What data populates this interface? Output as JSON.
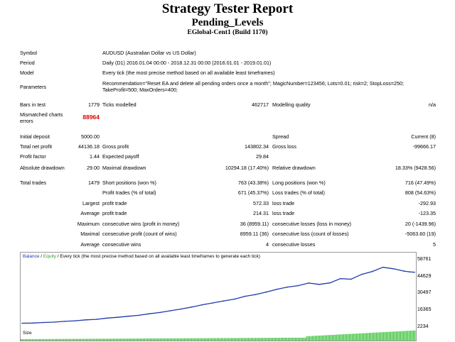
{
  "header": {
    "title": "Strategy Tester Report",
    "expert": "Pending_Levels",
    "server": "EGlobal-Cent1 (Build 1170)"
  },
  "settings": {
    "symbol_label": "Symbol",
    "symbol_value": "AUDUSD (Australian Dollar vs US Dollar)",
    "period_label": "Period",
    "period_value": "Daily (D1) 2016.01.04 00:00 - 2018.12.31 00:00 (2016.01.01 - 2019.01.01)",
    "model_label": "Model",
    "model_value": "Every tick (the most precise method based on all available least timeframes)",
    "parameters_label": "Parameters",
    "parameters_line1": "Recommendation=\"Reset EA and delete all pending orders once a month\"; MagicNumber=123456; Lots=0.01; risk=2; StopLoss=250;",
    "parameters_line2": "TakeProfit=500; MaxOrders=400;"
  },
  "quality": {
    "bars_label": "Bars in test",
    "bars_value": "1779",
    "ticks_label": "Ticks modelled",
    "ticks_value": "462717",
    "modelling_label": "Modelling quality",
    "modelling_value": "n/a",
    "mismatch_label_1": "Mismatched charts",
    "mismatch_label_2": "errors",
    "mismatch_value": "88964"
  },
  "results": {
    "initial_deposit_label": "Initial deposit",
    "initial_deposit": "5000.00",
    "spread_label": "Spread",
    "spread_value": "Current (8)",
    "net_profit_label": "Total net profit",
    "net_profit": "44136.18",
    "gross_profit_label": "Gross profit",
    "gross_profit": "143802.34",
    "gross_loss_label": "Gross loss",
    "gross_loss": "-99666.17",
    "profit_factor_label": "Profit factor",
    "profit_factor": "1.44",
    "expected_payoff_label": "Expected payoff",
    "expected_payoff": "29.84",
    "abs_dd_label": "Absolute drawdown",
    "abs_dd": "29.00",
    "max_dd_label": "Maximal drawdown",
    "max_dd": "10294.18 (17.40%)",
    "rel_dd_label": "Relative drawdown",
    "rel_dd": "18.33% (9428.56)"
  },
  "trades": {
    "total_label": "Total trades",
    "total": "1479",
    "short_label": "Short positions (won %)",
    "short": "763 (43.38%)",
    "long_label": "Long positions (won %)",
    "long": "716 (47.49%)",
    "profit_trades_label": "Profit trades (% of total)",
    "profit_trades": "671 (45.37%)",
    "loss_trades_label": "Loss trades (% of total)",
    "loss_trades": "808 (54.63%)",
    "largest_label": "Largest",
    "largest_profit_label": "profit trade",
    "largest_profit": "572.33",
    "largest_loss_label": "loss trade",
    "largest_loss": "-292.93",
    "average_label": "Average",
    "average_profit_label": "profit trade",
    "average_profit": "214.31",
    "average_loss_label": "loss trade",
    "average_loss": "-123.35",
    "maximum_label": "Maximum",
    "max_wins_label": "consecutive wins (profit in money)",
    "max_wins": "36 (8959.11)",
    "max_losses_label": "consecutive losses (loss in money)",
    "max_losses": "20 (-1439.96)",
    "maximal_label": "Maximal",
    "maximal_profit_label": "consecutive profit (count of wins)",
    "maximal_profit": "8959.11 (36)",
    "maximal_loss_label": "consecutive loss (count of losses)",
    "maximal_loss": "-5063.60 (19)",
    "avg_consec_label": "Average",
    "avg_wins_label": "consecutive wins",
    "avg_wins": "4",
    "avg_losses_label": "consecutive losses",
    "avg_losses": "5"
  },
  "chart": {
    "legend_balance": "Balance",
    "legend_sep": " / ",
    "legend_equity": "Equity",
    "legend_rest": " / Every tick (the most precise method based on all available least timeframes to generate each tick)",
    "size_label": "Size",
    "balance_color": "#1f3aa8",
    "equity_color": "#2aa02a",
    "size_color": "#22bb22"
  },
  "chart_data": {
    "type": "line",
    "title": "",
    "ylabel": "",
    "ylim": [
      2234,
      58761
    ],
    "y_ticks": [
      "58761",
      "44629",
      "30497",
      "16365",
      "2234"
    ],
    "series": [
      {
        "name": "Balance",
        "x": [
          0,
          40,
          80,
          120,
          160,
          200,
          240,
          280,
          320,
          360,
          400,
          440,
          480,
          520,
          560,
          600,
          640,
          680,
          720,
          760,
          800,
          840,
          880,
          920,
          960,
          1000,
          1040,
          1080,
          1120,
          1160,
          1200,
          1240,
          1280,
          1320,
          1360,
          1400,
          1440,
          1460,
          1479
        ],
        "values": [
          5000,
          5100,
          5600,
          5900,
          6600,
          7100,
          7900,
          8300,
          9400,
          10100,
          11000,
          11800,
          13200,
          14300,
          15800,
          17300,
          19000,
          21000,
          22600,
          24300,
          25800,
          28300,
          29800,
          32000,
          34300,
          36300,
          37500,
          39800,
          38600,
          39900,
          43600,
          43100,
          47300,
          49800,
          53400,
          52100,
          50100,
          49500,
          49100
        ]
      }
    ]
  }
}
